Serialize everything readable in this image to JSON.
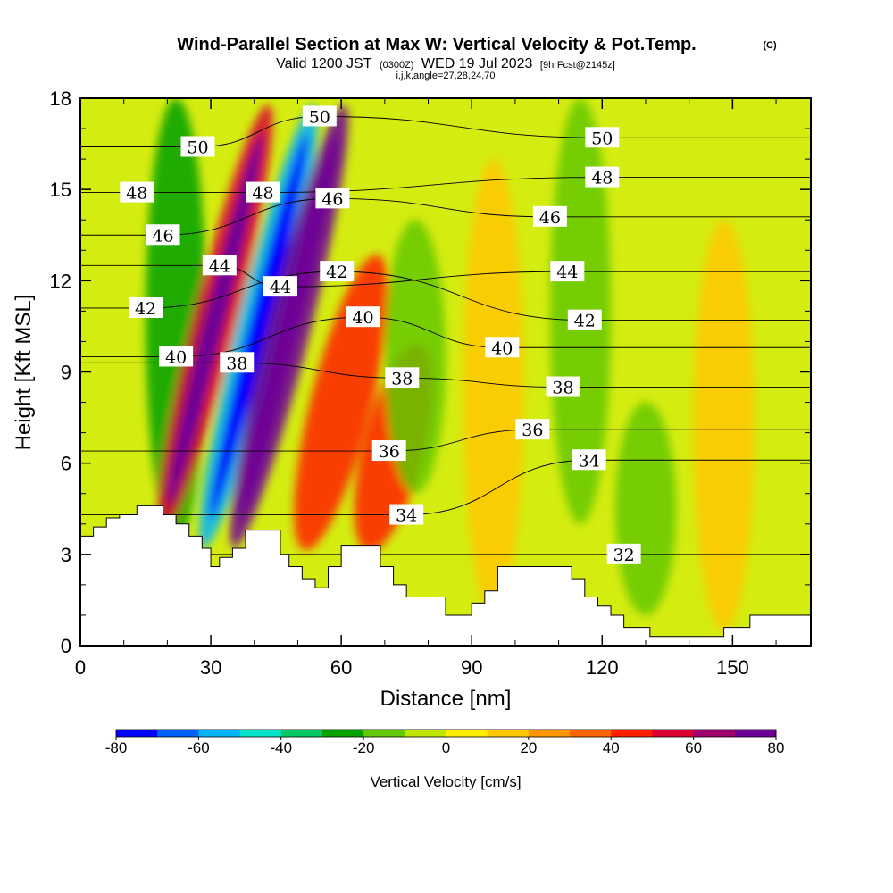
{
  "header": {
    "title": "Wind-Parallel Section at Max W: Vertical Velocity & Pot.Temp.",
    "title_mark": "(C)",
    "valid_a": "Valid 1200 JST",
    "valid_b": "(0300Z)",
    "valid_c": "WED 19 Jul 2023",
    "valid_d": "[9hrFcst@2145z]",
    "indices": "i,j,k,angle=27,28,24,70"
  },
  "chart_data": {
    "type": "heatmap",
    "xlabel": "Distance [nm]",
    "ylabel": "Height [Kft MSL]",
    "xlim": [
      0,
      168
    ],
    "ylim": [
      0,
      18
    ],
    "xticks": [
      "0",
      "30",
      "60",
      "90",
      "120",
      "150"
    ],
    "yticks": [
      "0",
      "3",
      "6",
      "9",
      "12",
      "15",
      "18"
    ],
    "xtick_values": [
      0,
      30,
      60,
      90,
      120,
      150
    ],
    "ytick_values": [
      0,
      3,
      6,
      9,
      12,
      15,
      18
    ],
    "colorbar": {
      "label": "Vertical Velocity [cm/s]",
      "ticks": [
        "-80",
        "-60",
        "-40",
        "-20",
        "0",
        "20",
        "40",
        "60",
        "80"
      ],
      "tick_values": [
        -80,
        -60,
        -40,
        -20,
        0,
        20,
        40,
        60,
        80
      ],
      "colors": [
        "#0000ff",
        "#0060ff",
        "#00b4ff",
        "#00e1c8",
        "#00c864",
        "#00a000",
        "#64c800",
        "#bee600",
        "#ffee00",
        "#ffc800",
        "#ff9600",
        "#ff6400",
        "#ff1e00",
        "#dc0032",
        "#a0006e",
        "#6e0096"
      ]
    },
    "vertical_velocity_features": [
      {
        "x_center": 22,
        "height_range": [
          3.5,
          18
        ],
        "w": -25
      },
      {
        "x_center": 31,
        "height_range": [
          3.5,
          18
        ],
        "w": 55
      },
      {
        "x_center": 41,
        "height_range": [
          3,
          18
        ],
        "w": -60
      },
      {
        "x_center": 48,
        "height_range": [
          3,
          18
        ],
        "w": 75
      },
      {
        "x_center": 60,
        "height_range": [
          3,
          13
        ],
        "w": 40
      },
      {
        "x_center": 72,
        "height_range": [
          3,
          10
        ],
        "w": 45
      },
      {
        "x_center": 77,
        "height_range": [
          5,
          14
        ],
        "w": -20
      },
      {
        "x_center": 95,
        "height_range": [
          1,
          16
        ],
        "w": 12
      },
      {
        "x_center": 115,
        "height_range": [
          4,
          18
        ],
        "w": -20
      },
      {
        "x_center": 130,
        "height_range": [
          1,
          8
        ],
        "w": -15
      },
      {
        "x_center": 148,
        "height_range": [
          0.5,
          14
        ],
        "w": 10
      }
    ],
    "contour_labels": [
      {
        "value": "50",
        "x": 27,
        "y": 16.4
      },
      {
        "value": "50",
        "x": 55,
        "y": 17.4
      },
      {
        "value": "50",
        "x": 120,
        "y": 16.7
      },
      {
        "value": "48",
        "x": 13,
        "y": 14.9
      },
      {
        "value": "48",
        "x": 42,
        "y": 14.9
      },
      {
        "value": "48",
        "x": 120,
        "y": 15.4
      },
      {
        "value": "46",
        "x": 19,
        "y": 13.5
      },
      {
        "value": "46",
        "x": 58,
        "y": 14.7
      },
      {
        "value": "46",
        "x": 108,
        "y": 14.1
      },
      {
        "value": "44",
        "x": 32,
        "y": 12.5
      },
      {
        "value": "44",
        "x": 46,
        "y": 11.8
      },
      {
        "value": "44",
        "x": 112,
        "y": 12.3
      },
      {
        "value": "42",
        "x": 15,
        "y": 11.1
      },
      {
        "value": "42",
        "x": 59,
        "y": 12.3
      },
      {
        "value": "42",
        "x": 116,
        "y": 10.7
      },
      {
        "value": "40",
        "x": 22,
        "y": 9.5
      },
      {
        "value": "40",
        "x": 65,
        "y": 10.8
      },
      {
        "value": "40",
        "x": 97,
        "y": 9.8
      },
      {
        "value": "38",
        "x": 36,
        "y": 9.3
      },
      {
        "value": "38",
        "x": 74,
        "y": 8.8
      },
      {
        "value": "38",
        "x": 111,
        "y": 8.5
      },
      {
        "value": "36",
        "x": 71,
        "y": 6.4
      },
      {
        "value": "36",
        "x": 104,
        "y": 7.1
      },
      {
        "value": "34",
        "x": 75,
        "y": 4.3
      },
      {
        "value": "34",
        "x": 117,
        "y": 6.1
      },
      {
        "value": "32",
        "x": 125,
        "y": 3.0
      }
    ],
    "terrain_kft": [
      [
        0,
        3.6
      ],
      [
        3,
        3.9
      ],
      [
        6,
        4.2
      ],
      [
        9,
        4.3
      ],
      [
        13,
        4.6
      ],
      [
        19,
        4.3
      ],
      [
        22,
        4.0
      ],
      [
        25,
        3.6
      ],
      [
        28,
        3.2
      ],
      [
        30,
        2.6
      ],
      [
        32,
        2.9
      ],
      [
        35,
        3.2
      ],
      [
        38,
        3.8
      ],
      [
        45,
        3.8
      ],
      [
        46,
        3.0
      ],
      [
        48,
        2.6
      ],
      [
        51,
        2.2
      ],
      [
        54,
        1.9
      ],
      [
        57,
        2.6
      ],
      [
        60,
        3.3
      ],
      [
        66,
        3.3
      ],
      [
        69,
        2.6
      ],
      [
        72,
        2.0
      ],
      [
        75,
        1.6
      ],
      [
        81,
        1.6
      ],
      [
        84,
        1.0
      ],
      [
        87,
        1.0
      ],
      [
        90,
        1.4
      ],
      [
        93,
        1.8
      ],
      [
        96,
        2.6
      ],
      [
        110,
        2.6
      ],
      [
        113,
        2.2
      ],
      [
        116,
        1.6
      ],
      [
        119,
        1.3
      ],
      [
        122,
        1.0
      ],
      [
        125,
        0.6
      ],
      [
        128,
        0.6
      ],
      [
        131,
        0.3
      ],
      [
        145,
        0.3
      ],
      [
        148,
        0.6
      ],
      [
        151,
        0.6
      ],
      [
        154,
        1.0
      ],
      [
        157,
        1.0
      ],
      [
        168,
        1.0
      ]
    ]
  }
}
